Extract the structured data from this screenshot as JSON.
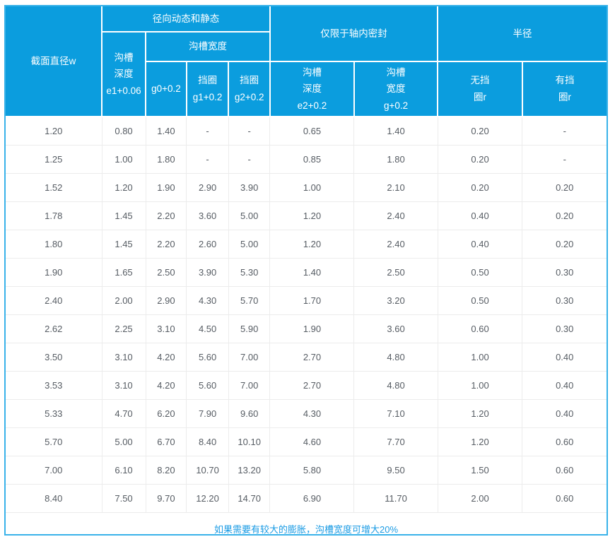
{
  "table": {
    "corner": "截面直径w",
    "group_radial": "径向动态和静态",
    "group_groove_width": "沟槽宽度",
    "group_axial": "仅限于轴内密封",
    "group_radius": "半径",
    "col_e1": "沟槽\n深度\ne1+0.06",
    "col_g0": "g0+0.2",
    "col_g1": "挡圈\ng1+0.2",
    "col_g2": "挡圈\ng2+0.2",
    "col_e2": "沟槽\n深度\ne2+0.2",
    "col_g": "沟槽\n宽度\ng+0.2",
    "col_r_without": "无挡\n圈r",
    "col_r_with": "有挡\n圈r",
    "rows": [
      [
        "1.20",
        "0.80",
        "1.40",
        "-",
        "-",
        "0.65",
        "1.40",
        "0.20",
        "-"
      ],
      [
        "1.25",
        "1.00",
        "1.80",
        "-",
        "-",
        "0.85",
        "1.80",
        "0.20",
        "-"
      ],
      [
        "1.52",
        "1.20",
        "1.90",
        "2.90",
        "3.90",
        "1.00",
        "2.10",
        "0.20",
        "0.20"
      ],
      [
        "1.78",
        "1.45",
        "2.20",
        "3.60",
        "5.00",
        "1.20",
        "2.40",
        "0.40",
        "0.20"
      ],
      [
        "1.80",
        "1.45",
        "2.20",
        "2.60",
        "5.00",
        "1.20",
        "2.40",
        "0.40",
        "0.20"
      ],
      [
        "1.90",
        "1.65",
        "2.50",
        "3.90",
        "5.30",
        "1.40",
        "2.50",
        "0.50",
        "0.30"
      ],
      [
        "2.40",
        "2.00",
        "2.90",
        "4.30",
        "5.70",
        "1.70",
        "3.20",
        "0.50",
        "0.30"
      ],
      [
        "2.62",
        "2.25",
        "3.10",
        "4.50",
        "5.90",
        "1.90",
        "3.60",
        "0.60",
        "0.30"
      ],
      [
        "3.50",
        "3.10",
        "4.20",
        "5.60",
        "7.00",
        "2.70",
        "4.80",
        "1.00",
        "0.40"
      ],
      [
        "3.53",
        "3.10",
        "4.20",
        "5.60",
        "7.00",
        "2.70",
        "4.80",
        "1.00",
        "0.40"
      ],
      [
        "5.33",
        "4.70",
        "6.20",
        "7.90",
        "9.60",
        "4.30",
        "7.10",
        "1.20",
        "0.40"
      ],
      [
        "5.70",
        "5.00",
        "6.70",
        "8.40",
        "10.10",
        "4.60",
        "7.70",
        "1.20",
        "0.60"
      ],
      [
        "7.00",
        "6.10",
        "8.20",
        "10.70",
        "13.20",
        "5.80",
        "9.50",
        "1.50",
        "0.60"
      ],
      [
        "8.40",
        "7.50",
        "9.70",
        "12.20",
        "14.70",
        "6.90",
        "11.70",
        "2.00",
        "0.60"
      ]
    ],
    "footer_note": "如果需要有较大的膨胀，沟槽宽度可增大20%"
  },
  "colors": {
    "header_bg": "#0b9dde",
    "outer_border": "#39b2e9",
    "footer_text": "#1a9be4",
    "body_text": "#565c63",
    "grid_line": "#ececec"
  }
}
